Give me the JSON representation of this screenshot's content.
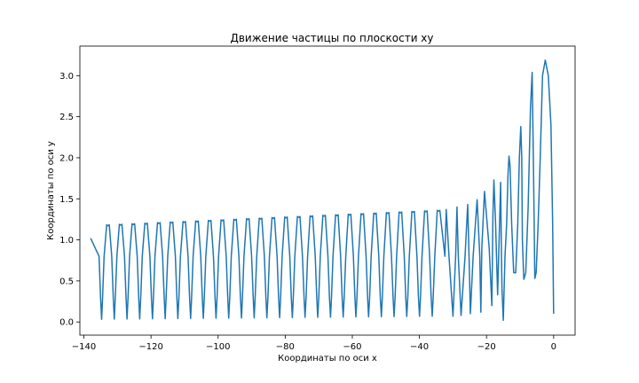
{
  "chart_data": {
    "type": "line",
    "title": "Движение частицы по плоскости xy",
    "xlabel": "Координаты по оси x",
    "ylabel": "Координаты по оси y",
    "xlim": [
      -141.2,
      6.4
    ],
    "ylim": [
      -0.16,
      3.36
    ],
    "xticks": [
      -140,
      -120,
      -100,
      -80,
      -60,
      -40,
      -20,
      0
    ],
    "xtick_labels": [
      "−140",
      "−120",
      "−100",
      "−80",
      "−60",
      "−40",
      "−20",
      "0"
    ],
    "yticks": [
      0.0,
      0.5,
      1.0,
      1.5,
      2.0,
      2.5,
      3.0
    ],
    "ytick_labels": [
      "0.0",
      "0.5",
      "1.0",
      "1.5",
      "2.0",
      "2.5",
      "3.0"
    ],
    "grid": false,
    "color": "#1f77b4",
    "series": [
      {
        "x": [
          0.0,
          -0.3,
          -0.8,
          -1.6,
          -2.5,
          -3.3,
          -4.0,
          -4.6,
          -5.2,
          -5.6,
          -5.8,
          -6.1,
          -6.4,
          -6.9,
          -7.6,
          -8.3,
          -8.9,
          -9.3,
          -9.5,
          -9.8,
          -10.2,
          -10.7,
          -11.3,
          -11.9,
          -12.5,
          -13.0,
          -13.3,
          -13.6,
          -14.0,
          -14.5,
          -15.0,
          -15.4,
          -15.6,
          -15.8,
          -16.1,
          -16.7,
          -17.3,
          -17.8,
          -18.1,
          -18.4,
          -19.2,
          -20.6,
          -21.4,
          -21.7,
          -22.0,
          -22.8,
          -24.0,
          -24.8,
          -25.2,
          -25.6,
          -26.4,
          -27.6,
          -28.4,
          -28.8,
          -29.2,
          -30.0,
          -31.2,
          -32.0,
          -32.4
        ],
        "y": [
          0.1,
          1.2,
          2.4,
          3.0,
          3.19,
          3.0,
          2.0,
          1.2,
          0.6,
          0.53,
          1.2,
          2.2,
          3.04,
          2.6,
          1.4,
          0.6,
          0.52,
          1.0,
          2.0,
          2.38,
          2.0,
          1.2,
          0.6,
          0.6,
          1.2,
          1.9,
          2.02,
          1.8,
          1.2,
          0.8,
          0.02,
          0.4,
          1.0,
          1.7,
          1.2,
          0.33,
          1.2,
          1.73,
          1.3,
          0.2,
          0.9,
          1.59,
          0.9,
          0.12,
          0.8,
          1.49,
          0.8,
          0.1,
          0.8,
          1.43,
          0.8,
          0.08,
          0.8,
          1.4,
          0.8,
          0.07,
          0.8,
          1.37,
          0.8
        ]
      }
    ],
    "tail": {
      "x_start": -32.4,
      "x_end": -138.0,
      "period": 3.79,
      "top_start": 1.36,
      "top_end": 1.17,
      "bottom_start": 0.07,
      "bottom_end": 0.03,
      "end_y": 1.02
    }
  }
}
